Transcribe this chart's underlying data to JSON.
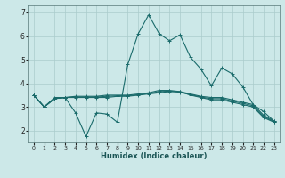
{
  "xlabel": "Humidex (Indice chaleur)",
  "bg_color": "#cce8e8",
  "grid_color": "#aacccc",
  "line_color": "#1a6b6b",
  "xlim": [
    -0.5,
    23.5
  ],
  "ylim": [
    1.5,
    7.3
  ],
  "yticks": [
    2,
    3,
    4,
    5,
    6,
    7
  ],
  "xticks": [
    0,
    1,
    2,
    3,
    4,
    5,
    6,
    7,
    8,
    9,
    10,
    11,
    12,
    13,
    14,
    15,
    16,
    17,
    18,
    19,
    20,
    21,
    22,
    23
  ],
  "lines": [
    {
      "x": [
        0,
        1,
        2,
        3,
        4,
        5,
        6,
        7,
        8,
        9,
        10,
        11,
        12,
        13,
        14,
        15,
        16,
        17,
        18,
        19,
        20,
        21,
        22,
        23
      ],
      "y": [
        3.5,
        3.0,
        3.4,
        3.4,
        2.75,
        1.75,
        2.75,
        2.7,
        2.35,
        4.8,
        6.1,
        6.9,
        6.1,
        5.8,
        6.05,
        5.1,
        4.6,
        3.9,
        4.65,
        4.4,
        3.85,
        3.1,
        2.8,
        2.4
      ]
    },
    {
      "x": [
        0,
        1,
        2,
        3,
        4,
        5,
        6,
        7,
        8,
        9,
        10,
        11,
        12,
        13,
        14,
        15,
        16,
        17,
        18,
        19,
        20,
        21,
        22,
        23
      ],
      "y": [
        3.5,
        3.0,
        3.35,
        3.4,
        3.4,
        3.4,
        3.4,
        3.4,
        3.45,
        3.45,
        3.5,
        3.55,
        3.6,
        3.65,
        3.65,
        3.55,
        3.45,
        3.4,
        3.4,
        3.3,
        3.2,
        3.1,
        2.65,
        2.4
      ]
    },
    {
      "x": [
        0,
        1,
        2,
        3,
        4,
        5,
        6,
        7,
        8,
        9,
        10,
        11,
        12,
        13,
        14,
        15,
        16,
        17,
        18,
        19,
        20,
        21,
        22,
        23
      ],
      "y": [
        3.5,
        3.0,
        3.35,
        3.4,
        3.45,
        3.45,
        3.45,
        3.5,
        3.5,
        3.5,
        3.55,
        3.6,
        3.7,
        3.7,
        3.65,
        3.5,
        3.4,
        3.3,
        3.3,
        3.2,
        3.1,
        3.0,
        2.55,
        2.35
      ]
    },
    {
      "x": [
        0,
        1,
        2,
        3,
        4,
        5,
        6,
        7,
        8,
        9,
        10,
        11,
        12,
        13,
        14,
        15,
        16,
        17,
        18,
        19,
        20,
        21,
        22,
        23
      ],
      "y": [
        3.5,
        3.0,
        3.35,
        3.4,
        3.42,
        3.42,
        3.42,
        3.45,
        3.47,
        3.47,
        3.52,
        3.57,
        3.65,
        3.67,
        3.62,
        3.52,
        3.42,
        3.35,
        3.35,
        3.25,
        3.15,
        3.05,
        2.6,
        2.37
      ]
    }
  ]
}
